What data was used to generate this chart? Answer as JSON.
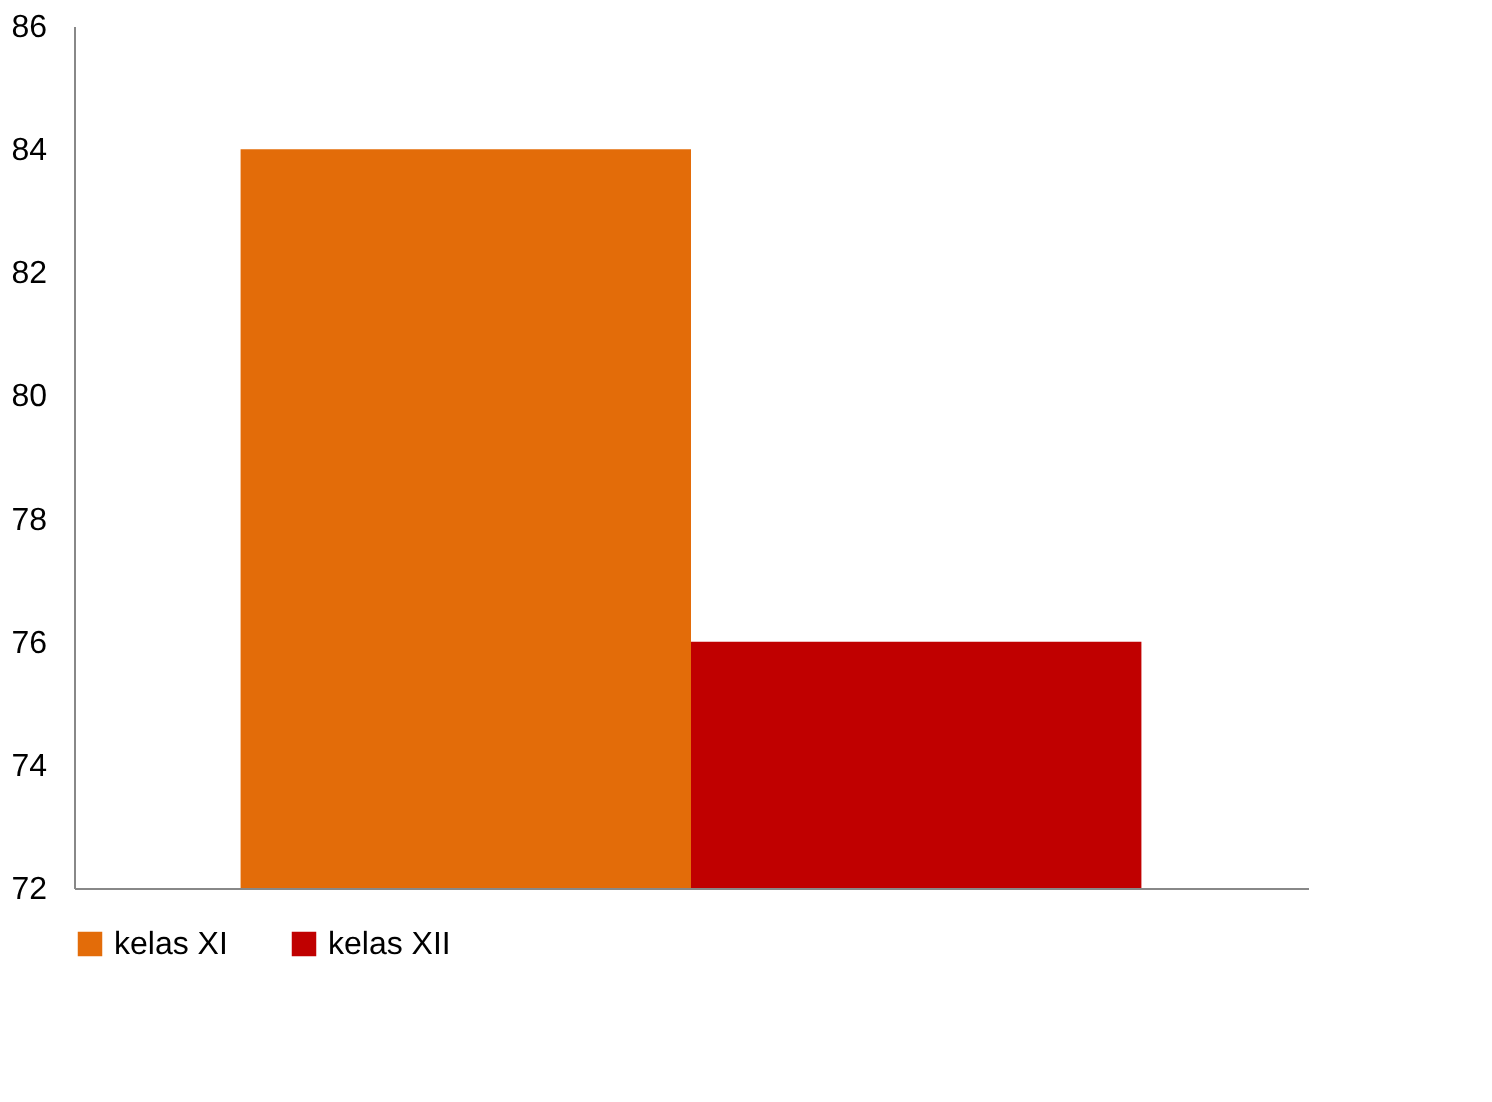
{
  "chart_data": {
    "type": "bar",
    "categories": [
      null
    ],
    "series": [
      {
        "name": "kelas XI",
        "color": "#e36c09",
        "values": [
          84
        ]
      },
      {
        "name": "kelas XII",
        "color": "#c00000",
        "values": [
          76
        ]
      }
    ],
    "ylim": [
      72,
      86
    ],
    "yticks": [
      72,
      74,
      76,
      78,
      80,
      82,
      84,
      86
    ],
    "grid": false,
    "legend": "bottom"
  }
}
